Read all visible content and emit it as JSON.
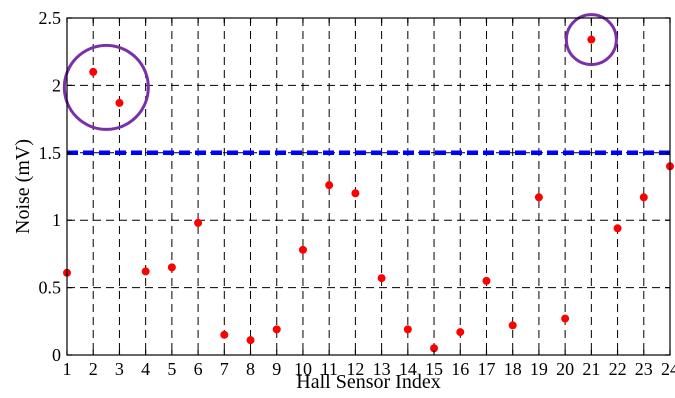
{
  "chart_data": {
    "type": "scatter",
    "xlabel": "Hall Sensor Index",
    "ylabel": "Noise (mV)",
    "xlim": [
      1,
      24
    ],
    "ylim": [
      0,
      2.5
    ],
    "x_ticks": [
      1,
      2,
      3,
      4,
      5,
      6,
      7,
      8,
      9,
      10,
      11,
      12,
      13,
      14,
      15,
      16,
      17,
      18,
      19,
      20,
      21,
      22,
      23,
      24
    ],
    "y_ticks": [
      0,
      0.5,
      1,
      1.5,
      2,
      2.5
    ],
    "y_tick_labels": [
      "0",
      "0.5",
      "1",
      "1.5",
      "2",
      "2.5"
    ],
    "grid": true,
    "series": [
      {
        "color": "#ff0000",
        "marker": "dot",
        "x": [
          1,
          2,
          3,
          4,
          5,
          6,
          7,
          8,
          9,
          10,
          11,
          12,
          13,
          14,
          15,
          16,
          17,
          18,
          19,
          20,
          21,
          22,
          23,
          24
        ],
        "y": [
          0.61,
          2.1,
          1.87,
          0.62,
          0.65,
          0.98,
          0.15,
          0.11,
          0.19,
          0.78,
          1.26,
          1.2,
          0.57,
          0.19,
          0.05,
          0.17,
          0.55,
          0.22,
          1.17,
          0.27,
          2.34,
          0.94,
          1.17,
          1.4
        ]
      }
    ],
    "threshold_line": {
      "y": 1.5,
      "color": "#0000ff",
      "style": "dashed"
    },
    "highlight_circles": [
      {
        "color": "#7b2fa8",
        "covers_x": [
          2,
          3
        ]
      },
      {
        "color": "#7b2fa8",
        "covers_x": [
          21
        ]
      }
    ]
  }
}
